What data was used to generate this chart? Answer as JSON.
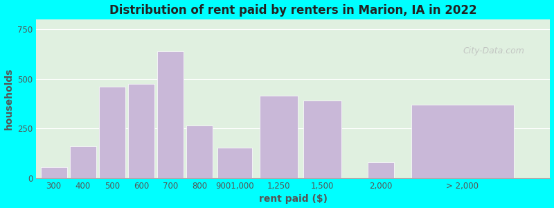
{
  "title": "Distribution of rent paid by renters in Marion, IA in 2022",
  "xlabel": "rent paid ($)",
  "ylabel": "households",
  "bar_color": "#c9b8d8",
  "background_outer": "#00FFFF",
  "background_inner": "#e0f0e0",
  "yticks": [
    0,
    250,
    500,
    750
  ],
  "ylim": [
    0,
    800
  ],
  "values": [
    55,
    160,
    460,
    475,
    640,
    265,
    155,
    415,
    390,
    80,
    370
  ],
  "tick_labels": [
    "300",
    "400",
    "500",
    "600",
    "700",
    "800",
    "9001,000",
    "1,250",
    "1,500",
    "2,000",
    "> 2,000"
  ],
  "watermark": "City-Data.com"
}
